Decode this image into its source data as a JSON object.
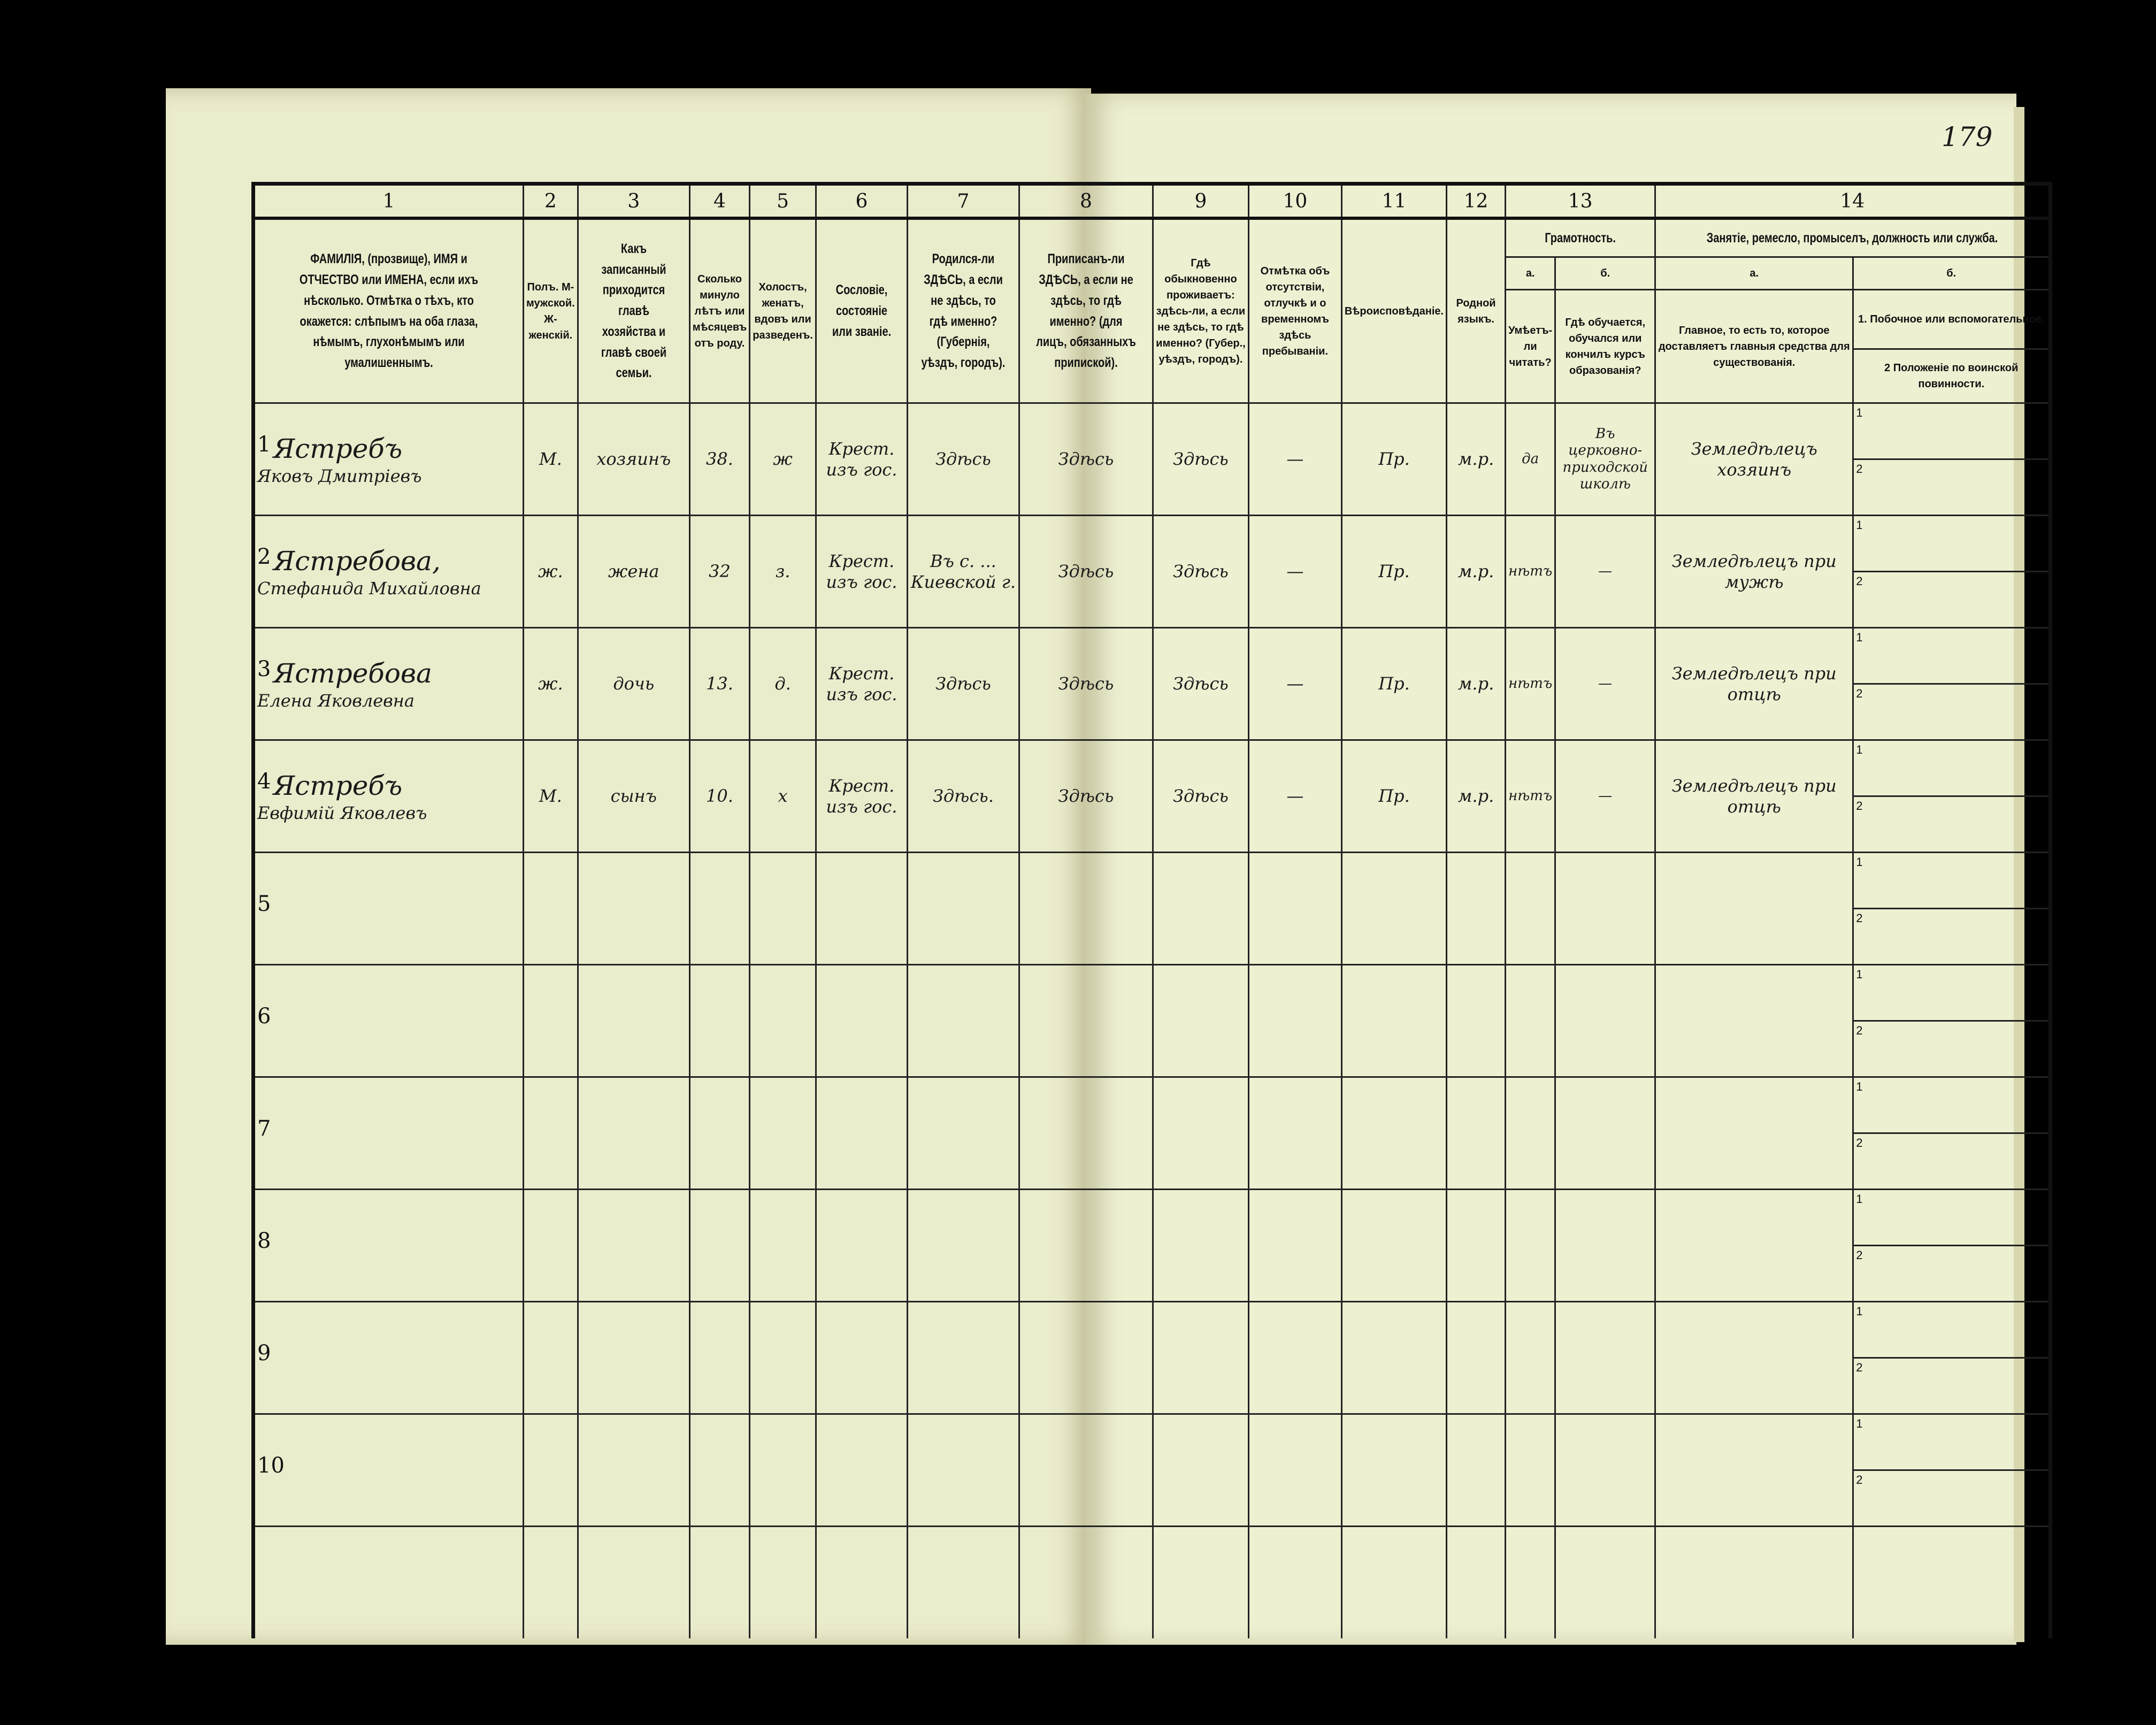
{
  "page_number": "179",
  "columns": {
    "numbers": [
      "1",
      "2",
      "3",
      "4",
      "5",
      "6",
      "7",
      "8",
      "9",
      "10",
      "11",
      "12",
      "13",
      "14"
    ],
    "c1": "ФАМИЛІЯ, (прозвище), ИМЯ и ОТЧЕСТВО или ИМЕНА, если ихъ нѣсколько. Отмѣтка о тѣхъ, кто окажется: слѣпымъ на оба глаза, нѣмымъ, глухонѣмымъ или умалишеннымъ.",
    "c2": "Полъ. М-мужской. Ж-женскій.",
    "c3": "Какъ записанный приходится главѣ хозяйства и главѣ своей семьи.",
    "c4": "Сколько минуло лѣтъ или мѣсяцевъ отъ роду.",
    "c5": "Холостъ, женатъ, вдовъ или разведенъ.",
    "c6": "Сословіе, состояніе или званіе.",
    "c7": "Родился-ли ЗДѢСЬ, а если не здѣсь, то гдѣ именно? (Губернія, уѣздъ, городъ).",
    "c8": "Приписанъ-ли ЗДѢСЬ, а если не здѣсь, то гдѣ именно? (для лицъ, обязанныхъ припиской).",
    "c9": "Гдѣ обыкновенно проживаетъ: здѣсь-ли, а если не здѣсь, то гдѣ именно? (Губер., уѣздъ, городъ).",
    "c10": "Отмѣтка объ отсутствіи, отлучкѣ и о временномъ здѣсь пребываніи.",
    "c11": "Вѣроисповѣданіе.",
    "c12": "Родной языкъ.",
    "c13": "Грамотность.",
    "c13a_letter": "а.",
    "c13a": "Умѣетъ-ли читать?",
    "c13b_letter": "б.",
    "c13b": "Гдѣ обучается, обучался или кончилъ курсъ образованія?",
    "c14": "Занятіе, ремесло, промыселъ, должность или служба.",
    "c14a_letter": "а.",
    "c14a": "Главное, то есть то, которое доставляетъ главныя средства для существованія.",
    "c14b_letter": "б.",
    "c14b1": "1. Побочное или вспомогательное.",
    "c14b2": "2 Положеніе по воинской повинности."
  },
  "rows": [
    {
      "n": "1",
      "surname": "Ястребъ",
      "given": "Яковъ Дмитріевъ",
      "sex": "М.",
      "relation": "хозяинъ",
      "age": "38.",
      "marital": "ж",
      "estate": "Крест. изъ гос.",
      "born": "Здѣсь",
      "registered": "Здѣсь",
      "resides": "Здѣсь",
      "absence": "—",
      "religion": "Пр.",
      "language": "м.р.",
      "literate": "да",
      "education": "Въ церковно-приходской школѣ",
      "occupation": "Земледѣлецъ хозяинъ",
      "sub1": "1",
      "sub2": "2"
    },
    {
      "n": "2",
      "surname": "Ястребова,",
      "given": "Стефанида Михайловна",
      "sex": "ж.",
      "relation": "жена",
      "age": "32",
      "marital": "з.",
      "estate": "Крест. изъ гос.",
      "born": "Въ с. ... Киевской г.",
      "registered": "Здѣсь",
      "resides": "Здѣсь",
      "absence": "—",
      "religion": "Пр.",
      "language": "м.р.",
      "literate": "нѣтъ",
      "education": "—",
      "occupation": "Земледѣлецъ при мужѣ",
      "sub1": "1",
      "sub2": "2"
    },
    {
      "n": "3",
      "surname": "Ястребова",
      "given": "Елена Яковлевна",
      "sex": "ж.",
      "relation": "дочь",
      "age": "13.",
      "marital": "д.",
      "estate": "Крест. изъ гос.",
      "born": "Здѣсь",
      "registered": "Здѣсь",
      "resides": "Здѣсь",
      "absence": "—",
      "religion": "Пр.",
      "language": "м.р.",
      "literate": "нѣтъ",
      "education": "—",
      "occupation": "Земледѣлецъ при отцѣ",
      "sub1": "1",
      "sub2": "2"
    },
    {
      "n": "4",
      "surname": "Ястребъ",
      "given": "Евфимій Яковлевъ",
      "sex": "М.",
      "relation": "сынъ",
      "age": "10.",
      "marital": "х",
      "estate": "Крест. изъ гос.",
      "born": "Здѣсь.",
      "registered": "Здѣсь",
      "resides": "Здѣсь",
      "absence": "—",
      "religion": "Пр.",
      "language": "м.р.",
      "literate": "нѣтъ",
      "education": "—",
      "occupation": "Земледѣлецъ при отцѣ",
      "sub1": "1",
      "sub2": "2"
    },
    {
      "n": "5",
      "sub1": "1",
      "sub2": "2"
    },
    {
      "n": "6",
      "sub1": "1",
      "sub2": "2"
    },
    {
      "n": "7",
      "sub1": "1",
      "sub2": "2"
    },
    {
      "n": "8",
      "sub1": "1",
      "sub2": "2"
    },
    {
      "n": "9",
      "sub1": "1",
      "sub2": "2"
    },
    {
      "n": "10",
      "sub1": "1",
      "sub2": "2"
    }
  ]
}
